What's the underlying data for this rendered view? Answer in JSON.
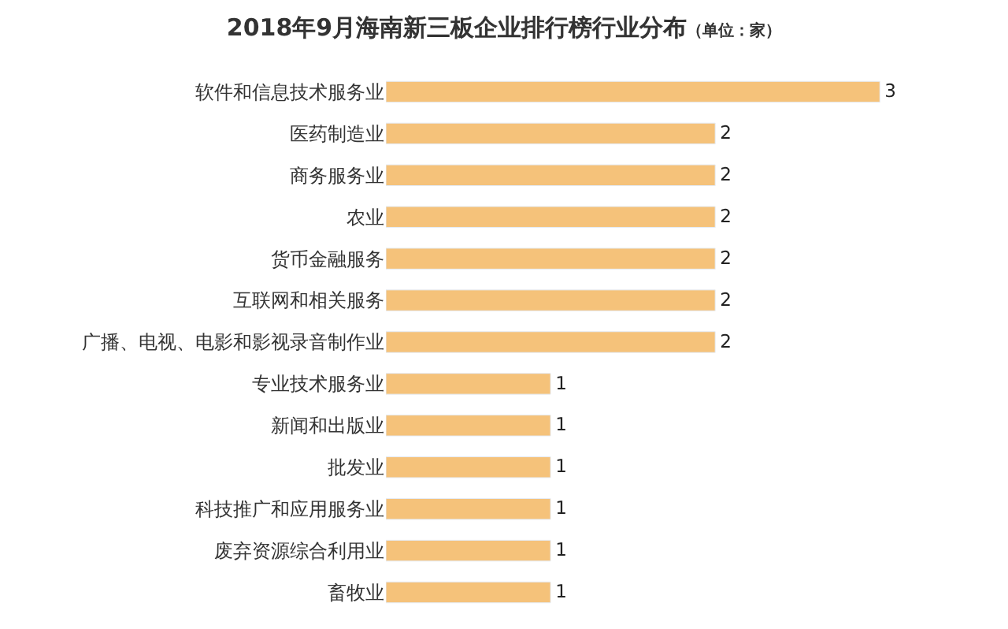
{
  "chart_data": {
    "type": "bar",
    "orientation": "horizontal",
    "title": "2018年9月海南新三板企业排行榜行业分布",
    "subtitle": "（单位：家）",
    "categories": [
      "软件和信息技术服务业",
      "医药制造业",
      "商务服务业",
      "农业",
      "货币金融服务",
      "互联网和相关服务",
      "广播、电视、电影和影视录音制作业",
      "专业技术服务业",
      "新闻和出版业",
      "批发业",
      "科技推广和应用服务业",
      "废弃资源综合利用业",
      "畜牧业"
    ],
    "values": [
      3,
      2,
      2,
      2,
      2,
      2,
      2,
      1,
      1,
      1,
      1,
      1,
      1
    ],
    "color": "#f5c27a",
    "data_labels": true
  }
}
